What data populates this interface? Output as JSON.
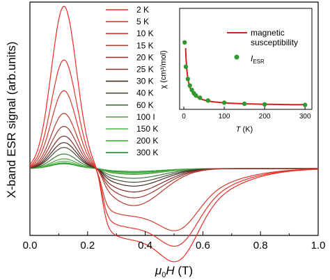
{
  "chart_data": {
    "type": "line",
    "xlabel_symbol": "μ",
    "xlabel_sub": "0",
    "xlabel_var": "H",
    "xlabel_unit": " (T)",
    "ylabel": "X-band ESR signal (arb.units)",
    "xlim": [
      0.0,
      1.0
    ],
    "xticks": [
      "0.0",
      "0.2",
      "0.4",
      "0.6",
      "0.8",
      "1.0"
    ],
    "y_ticks_shown": false,
    "legend_position": "top-center",
    "series": [
      {
        "name": "2 K",
        "color": "#ee2a24",
        "peak": 1.0,
        "trough": 0.36,
        "broad": true
      },
      {
        "name": "5 K",
        "color": "#e33328",
        "peak": 0.67,
        "trough": 0.3,
        "broad": true
      },
      {
        "name": "10 K",
        "color": "#d13b2e",
        "peak": 0.48,
        "trough": 0.24,
        "broad": true
      },
      {
        "name": "15 K",
        "color": "#b93a31",
        "peak": 0.34,
        "trough": 0.19,
        "broad": false
      },
      {
        "name": "20 K",
        "color": "#9e3832",
        "peak": 0.26,
        "trough": 0.15,
        "broad": false
      },
      {
        "name": "25 K",
        "color": "#7a2f2c",
        "peak": 0.2,
        "trough": 0.12,
        "broad": false
      },
      {
        "name": "30 K",
        "color": "#4a2a25",
        "peak": 0.16,
        "trough": 0.09,
        "broad": false
      },
      {
        "name": "40 K",
        "color": "#4a4a3c",
        "peak": 0.13,
        "trough": 0.07,
        "broad": false
      },
      {
        "name": "60 K",
        "color": "#3c7a3a",
        "peak": 0.09,
        "trough": 0.05,
        "broad": false
      },
      {
        "name": "100 I",
        "color": "#5aa04a",
        "peak": 0.06,
        "trough": 0.03,
        "broad": false
      },
      {
        "name": "150 K",
        "color": "#4fb845",
        "peak": 0.045,
        "trough": 0.025,
        "broad": false
      },
      {
        "name": "200 K",
        "color": "#3ab038",
        "peak": 0.035,
        "trough": 0.02,
        "broad": false
      },
      {
        "name": "300 K",
        "color": "#1f8a2a",
        "peak": 0.03,
        "trough": 0.015,
        "broad": false
      }
    ],
    "inset": {
      "type": "line+scatter",
      "xlabel": "T",
      "xlabel_unit": " (K)",
      "ylabel": "χ (cm³/mol)",
      "xlim": [
        0,
        310
      ],
      "xticks": [
        "0",
        "100",
        "200",
        "300"
      ],
      "curve": {
        "name_line1": "magnetic",
        "name_line2": "susceptibility",
        "color": "#d42020"
      },
      "points": {
        "name": "I",
        "name_sub": "ESR",
        "color": "#2e9a2e",
        "x": [
          2,
          5,
          10,
          15,
          20,
          25,
          30,
          40,
          60,
          100,
          150,
          200,
          300
        ],
        "y": [
          5.8,
          3.6,
          2.5,
          1.9,
          1.5,
          1.2,
          1.0,
          0.8,
          0.55,
          0.35,
          0.25,
          0.2,
          0.15
        ]
      }
    }
  }
}
